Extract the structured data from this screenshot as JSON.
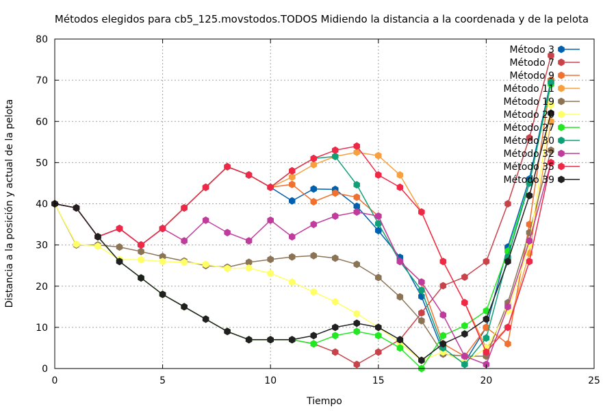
{
  "chart_data": {
    "type": "line",
    "title": "Métodos elegidos para cb5_125.movstodos.TODOS Midiendo la distancia a la coordenada y de la pelota",
    "xlabel": "Tiempo",
    "ylabel": "Distancia a la posición y actual de la pelota",
    "xlim": [
      0,
      25
    ],
    "ylim": [
      0,
      80
    ],
    "xticks": [
      "0",
      "5",
      "10",
      "15",
      "20",
      "25"
    ],
    "yticks": [
      "0",
      "10",
      "20",
      "30",
      "40",
      "50",
      "60",
      "70",
      "80"
    ],
    "grid": true,
    "legend_position": "top-right",
    "series": [
      {
        "name": "Método 3",
        "color": "#0060ad",
        "x": [
          0,
          1,
          2,
          3,
          4,
          5,
          6,
          7,
          8,
          9,
          10,
          11,
          12,
          13,
          14,
          15,
          16,
          17,
          18,
          19,
          20,
          21,
          22,
          23
        ],
        "y": [
          40,
          39,
          32,
          34,
          30,
          34,
          39,
          44,
          49,
          47,
          44,
          40.7,
          43.6,
          43.5,
          39.4,
          33.5,
          27,
          17.5,
          4,
          1.5,
          10,
          29.5,
          46,
          70
        ]
      },
      {
        "name": "Método 7",
        "color": "#c8424a",
        "x": [
          0,
          1,
          2,
          3,
          4,
          5,
          6,
          7,
          8,
          9,
          10,
          11,
          12,
          13,
          14,
          15,
          16,
          17,
          18,
          19,
          20,
          21,
          22,
          23
        ],
        "y": [
          40,
          39,
          32,
          26,
          22,
          18,
          15,
          12,
          9,
          7,
          7,
          7,
          6,
          4,
          1,
          4,
          7,
          13.5,
          20.1,
          22.2,
          26,
          40,
          56,
          76
        ]
      },
      {
        "name": "Método 9",
        "color": "#f07030",
        "x": [
          0,
          1,
          2,
          3,
          4,
          5,
          6,
          7,
          8,
          9,
          10,
          11,
          12,
          13,
          14,
          15,
          16,
          17,
          18,
          19,
          20,
          21,
          22,
          23
        ],
        "y": [
          40,
          39,
          32,
          34,
          30,
          34,
          39,
          44,
          49,
          47,
          44,
          44.7,
          40.5,
          42.6,
          41.6,
          37,
          26,
          21,
          6,
          3,
          10,
          6,
          35,
          70
        ]
      },
      {
        "name": "Método 11",
        "color": "#f7a040",
        "x": [
          0,
          1,
          2,
          3,
          4,
          5,
          6,
          7,
          8,
          9,
          10,
          11,
          12,
          13,
          14,
          15,
          16,
          17,
          18,
          19,
          20,
          21,
          22,
          23
        ],
        "y": [
          40,
          39,
          32,
          34,
          30,
          34,
          39,
          44,
          49,
          47,
          44,
          46.5,
          49.5,
          51.5,
          52.5,
          51.7,
          47,
          38,
          26,
          16,
          5,
          10,
          28,
          60
        ]
      },
      {
        "name": "Método 19",
        "color": "#8b7355",
        "x": [
          0,
          1,
          2,
          3,
          4,
          5,
          6,
          7,
          8,
          9,
          10,
          11,
          12,
          13,
          14,
          15,
          16,
          17,
          18,
          19,
          20,
          21,
          22,
          23
        ],
        "y": [
          40,
          30,
          30,
          29.5,
          28.4,
          27.2,
          26.1,
          25,
          24.6,
          25.8,
          26.5,
          27.1,
          27.4,
          26.8,
          25.3,
          22.1,
          17.4,
          11.6,
          3.5,
          3,
          3,
          16,
          33,
          53
        ]
      },
      {
        "name": "Método 20",
        "color": "#ffff66",
        "x": [
          0,
          1,
          2,
          3,
          4,
          5,
          6,
          7,
          8,
          9,
          10,
          11,
          12,
          13,
          14,
          15,
          16,
          17,
          18,
          19,
          20,
          21,
          22,
          23
        ],
        "y": [
          40,
          30.2,
          29.7,
          26.5,
          26.4,
          26,
          25.8,
          25.3,
          24.3,
          24.4,
          23.1,
          21,
          18.6,
          16.2,
          13.3,
          10,
          6.2,
          2,
          4,
          1.5,
          5,
          14,
          30,
          64
        ]
      },
      {
        "name": "Método 27",
        "color": "#22e822",
        "x": [
          0,
          1,
          2,
          3,
          4,
          5,
          6,
          7,
          8,
          9,
          10,
          11,
          12,
          13,
          14,
          15,
          16,
          17,
          18,
          19,
          20,
          21,
          22,
          23
        ],
        "y": [
          40,
          39,
          32,
          26,
          22,
          18,
          15,
          12,
          9,
          7,
          7,
          7,
          6,
          8,
          9,
          8,
          5,
          0,
          8,
          10.4,
          14,
          28.5,
          45,
          69
        ]
      },
      {
        "name": "Método 30",
        "color": "#10a078",
        "x": [
          0,
          1,
          2,
          3,
          4,
          5,
          6,
          7,
          8,
          9,
          10,
          11,
          12,
          13,
          14,
          15,
          16,
          17,
          18,
          19,
          20,
          21,
          22,
          23
        ],
        "y": [
          40,
          39,
          32,
          34,
          30,
          34,
          39,
          44,
          49,
          47,
          44,
          48,
          51,
          51.5,
          44.6,
          35.2,
          26,
          19,
          5,
          1,
          7.4,
          27,
          45,
          69.5
        ]
      },
      {
        "name": "Método 32",
        "color": "#c03c9c",
        "x": [
          0,
          1,
          2,
          3,
          4,
          5,
          6,
          7,
          8,
          9,
          10,
          11,
          12,
          13,
          14,
          15,
          16,
          17,
          18,
          19,
          20,
          21,
          22,
          23
        ],
        "y": [
          40,
          39,
          32,
          34,
          30,
          34,
          31,
          36,
          33,
          31,
          36,
          32,
          35,
          37,
          38,
          37,
          26,
          21,
          13,
          3,
          1,
          15,
          31,
          50
        ]
      },
      {
        "name": "Método 35",
        "color": "#f02848",
        "x": [
          0,
          1,
          2,
          3,
          4,
          5,
          6,
          7,
          8,
          9,
          10,
          11,
          12,
          13,
          14,
          15,
          16,
          17,
          18,
          19,
          20,
          21,
          22,
          23
        ],
        "y": [
          40,
          39,
          32,
          34,
          30,
          34,
          39,
          44,
          49,
          47,
          44,
          48,
          51,
          53,
          54,
          47,
          44,
          38,
          26,
          16,
          4,
          10,
          26,
          50
        ]
      },
      {
        "name": "Método 39",
        "color": "#202020",
        "x": [
          0,
          1,
          2,
          3,
          4,
          5,
          6,
          7,
          8,
          9,
          10,
          11,
          12,
          13,
          14,
          15,
          16,
          17,
          18,
          19,
          20,
          21,
          22,
          23
        ],
        "y": [
          40,
          39,
          32,
          26,
          22,
          18,
          15,
          12,
          9,
          7,
          7,
          7,
          8,
          10,
          11,
          10,
          7,
          2,
          6,
          8.4,
          12,
          26,
          42,
          62
        ]
      }
    ]
  }
}
